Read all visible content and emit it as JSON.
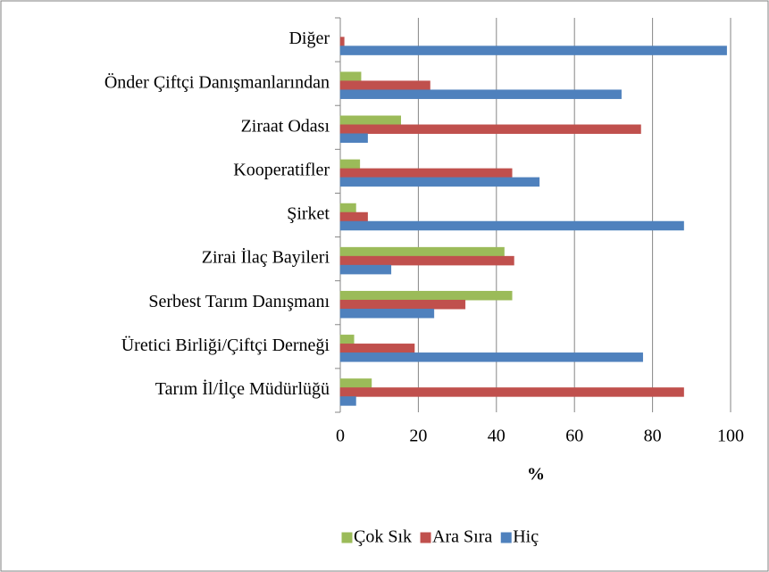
{
  "chart_data": {
    "type": "bar",
    "orientation": "horizontal",
    "categories": [
      "Tarım İl/İlçe Müdürlüğü",
      "Üretici Birliği/Çiftçi Derneği ",
      "Serbest Tarım Danışmanı",
      "Zirai İlaç Bayileri",
      "Şirket",
      "Kooperatifler",
      "Ziraat Odası",
      "Önder Çiftçi Danışmanlarından",
      "Diğer"
    ],
    "series": [
      {
        "name": "Çok Sık",
        "color": "#9bbb59",
        "values": [
          8,
          3.5,
          44,
          42,
          4,
          5,
          15.5,
          5.3,
          0
        ]
      },
      {
        "name": "Ara Sıra",
        "color": "#c0504d",
        "values": [
          88,
          19,
          32,
          44.5,
          7,
          44,
          77,
          23,
          1
        ]
      },
      {
        "name": "Hiç",
        "color": "#4f81bd",
        "values": [
          4,
          77.5,
          24,
          13,
          88,
          51,
          7,
          72,
          99
        ]
      }
    ],
    "xlabel": "%",
    "xlim": [
      0,
      100
    ],
    "xticks": [
      0,
      20,
      40,
      60,
      80,
      100
    ],
    "grid": true,
    "legend": "bottom"
  }
}
